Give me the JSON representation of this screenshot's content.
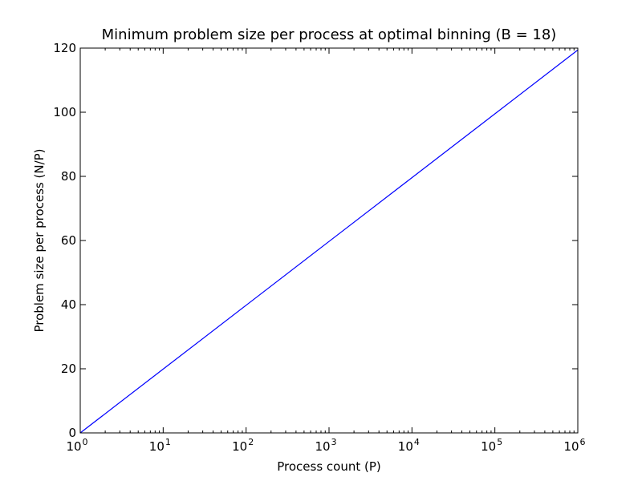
{
  "chart_data": {
    "type": "line",
    "title": "Minimum problem size per process at optimal binning (B = 18)",
    "xlabel": "Process count (P)",
    "ylabel": "Problem size per process (N/P)",
    "xscale": "log",
    "xlim": [
      1,
      1000000
    ],
    "ylim": [
      0,
      120
    ],
    "x_ticks": [
      {
        "value": 1,
        "base": "10",
        "exp": "0"
      },
      {
        "value": 10,
        "base": "10",
        "exp": "1"
      },
      {
        "value": 100,
        "base": "10",
        "exp": "2"
      },
      {
        "value": 1000,
        "base": "10",
        "exp": "3"
      },
      {
        "value": 10000,
        "base": "10",
        "exp": "4"
      },
      {
        "value": 100000,
        "base": "10",
        "exp": "5"
      },
      {
        "value": 1000000,
        "base": "10",
        "exp": "6"
      }
    ],
    "y_ticks": [
      0,
      20,
      40,
      60,
      80,
      100,
      120
    ],
    "grid": false,
    "series": [
      {
        "color": "#0000ff",
        "x": [
          1,
          10,
          100,
          1000,
          10000,
          100000,
          1000000
        ],
        "y": [
          0,
          19.9,
          39.8,
          59.7,
          79.6,
          99.5,
          119.4
        ]
      }
    ]
  }
}
